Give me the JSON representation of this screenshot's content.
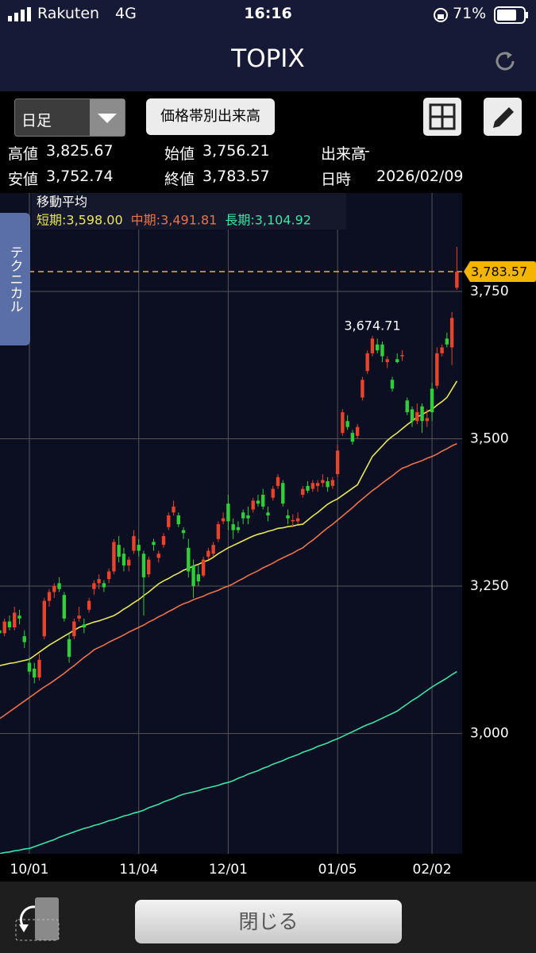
{
  "status": {
    "carrier": "Rakuten",
    "network": "4G",
    "time": "16:16",
    "battery": "71%"
  },
  "header": {
    "title": "TOPIX"
  },
  "toolbar": {
    "period": "日足",
    "volume_button": "価格帯別出来高"
  },
  "quote": [
    [
      "高値",
      "3,825.67"
    ],
    [
      "始値",
      "3,756.21"
    ],
    [
      "出来高",
      "--"
    ],
    [
      "安値",
      "3,752.74"
    ],
    [
      "終値",
      "3,783.57"
    ],
    [
      "日時",
      "2026/02/09"
    ]
  ],
  "side_tab": "テクニカル",
  "chart_data": {
    "type": "candlestick",
    "legend_title": "移動平均",
    "categories": [
      null,
      null,
      null,
      null,
      null,
      null,
      "10/01",
      null,
      null,
      null,
      null,
      null,
      null,
      null,
      null,
      null,
      null,
      null,
      null,
      null,
      null,
      null,
      null,
      null,
      null,
      null,
      null,
      null,
      "11/04",
      null,
      null,
      null,
      null,
      null,
      null,
      null,
      null,
      null,
      null,
      null,
      null,
      null,
      null,
      null,
      null,
      null,
      "12/01",
      null,
      null,
      null,
      null,
      null,
      null,
      null,
      null,
      null,
      null,
      null,
      null,
      null,
      null,
      null,
      null,
      null,
      null,
      null,
      null,
      null,
      "01/05",
      null,
      null,
      null,
      null,
      null,
      null,
      null,
      null,
      null,
      null,
      null,
      null,
      null,
      null,
      null,
      null,
      null,
      null,
      "02/02",
      null,
      null,
      null,
      null,
      null
    ],
    "ohlc": [
      [
        3175,
        3185,
        3160,
        3170
      ],
      [
        3170,
        3195,
        3165,
        3190
      ],
      [
        3190,
        3200,
        3175,
        3180
      ],
      [
        3180,
        3215,
        3175,
        3205
      ],
      [
        3200,
        3210,
        3185,
        3195
      ],
      [
        3165,
        3175,
        3145,
        3155
      ],
      [
        3120,
        3130,
        3100,
        3105
      ],
      [
        3110,
        3120,
        3085,
        3095
      ],
      [
        3095,
        3135,
        3090,
        3125
      ],
      [
        3165,
        3230,
        3160,
        3225
      ],
      [
        3225,
        3245,
        3215,
        3240
      ],
      [
        3240,
        3255,
        3230,
        3250
      ],
      [
        3255,
        3265,
        3240,
        3245
      ],
      [
        3235,
        3240,
        3190,
        3195
      ],
      [
        3160,
        3170,
        3120,
        3130
      ],
      [
        3165,
        3195,
        3160,
        3190
      ],
      [
        3195,
        3215,
        3190,
        3200
      ],
      [
        3185,
        3195,
        3170,
        3180
      ],
      [
        3210,
        3230,
        3205,
        3225
      ],
      [
        3245,
        3260,
        3235,
        3255
      ],
      [
        3255,
        3270,
        3245,
        3262
      ],
      [
        3255,
        3260,
        3240,
        3248
      ],
      [
        3262,
        3280,
        3255,
        3275
      ],
      [
        3275,
        3330,
        3270,
        3325
      ],
      [
        3320,
        3335,
        3290,
        3300
      ],
      [
        3305,
        3315,
        3275,
        3285
      ],
      [
        3285,
        3300,
        3275,
        3295
      ],
      [
        3310,
        3345,
        3305,
        3335
      ],
      [
        3320,
        3330,
        3300,
        3310
      ],
      [
        3305,
        3310,
        3200,
        3265
      ],
      [
        3270,
        3300,
        3265,
        3295
      ],
      [
        3325,
        3330,
        3310,
        3320
      ],
      [
        3298,
        3310,
        3290,
        3305
      ],
      [
        3320,
        3340,
        3315,
        3335
      ],
      [
        3350,
        3375,
        3345,
        3370
      ],
      [
        3375,
        3395,
        3370,
        3385
      ],
      [
        3370,
        3375,
        3350,
        3355
      ],
      [
        3345,
        3350,
        3330,
        3340
      ],
      [
        3315,
        3330,
        3265,
        3275
      ],
      [
        3285,
        3295,
        3230,
        3250
      ],
      [
        3270,
        3285,
        3250,
        3258
      ],
      [
        3268,
        3300,
        3265,
        3295
      ],
      [
        3300,
        3315,
        3295,
        3310
      ],
      [
        3305,
        3325,
        3300,
        3320
      ],
      [
        3330,
        3360,
        3325,
        3355
      ],
      [
        3360,
        3375,
        3355,
        3365
      ],
      [
        3390,
        3405,
        3345,
        3360
      ],
      [
        3355,
        3365,
        3330,
        3345
      ],
      [
        3350,
        3360,
        3340,
        3345
      ],
      [
        3375,
        3380,
        3355,
        3365
      ],
      [
        3370,
        3385,
        3355,
        3365
      ],
      [
        3380,
        3400,
        3375,
        3395
      ],
      [
        3395,
        3405,
        3385,
        3390
      ],
      [
        3405,
        3415,
        3380,
        3385
      ],
      [
        3375,
        3385,
        3360,
        3370
      ],
      [
        3400,
        3420,
        3395,
        3415
      ],
      [
        3420,
        3440,
        3415,
        3435
      ],
      [
        3425,
        3430,
        3385,
        3390
      ],
      [
        3370,
        3380,
        3355,
        3365
      ],
      [
        3360,
        3372,
        3350,
        3362
      ],
      [
        3360,
        3375,
        3355,
        3365
      ],
      [
        3405,
        3420,
        3400,
        3415
      ],
      [
        3420,
        3428,
        3408,
        3412
      ],
      [
        3415,
        3430,
        3410,
        3425
      ],
      [
        3420,
        3430,
        3410,
        3425
      ],
      [
        3425,
        3440,
        3418,
        3430
      ],
      [
        3428,
        3435,
        3410,
        3418
      ],
      [
        3420,
        3435,
        3415,
        3430
      ],
      [
        3440,
        3490,
        3435,
        3480
      ],
      [
        3510,
        3550,
        3505,
        3545
      ],
      [
        3530,
        3540,
        3515,
        3520
      ],
      [
        3510,
        3515,
        3490,
        3495
      ],
      [
        3505,
        3525,
        3500,
        3520
      ],
      [
        3570,
        3605,
        3565,
        3600
      ],
      [
        3615,
        3650,
        3610,
        3645
      ],
      [
        3645,
        3674.71,
        3640,
        3670
      ],
      [
        3660,
        3670,
        3645,
        3650
      ],
      [
        3660,
        3665,
        3630,
        3640
      ],
      [
        3630,
        3640,
        3620,
        3635
      ],
      [
        3600,
        3605,
        3580,
        3585
      ],
      [
        3635,
        3645,
        3628,
        3630
      ],
      [
        3640,
        3650,
        3632,
        3642
      ],
      [
        3565,
        3570,
        3540,
        3545
      ],
      [
        3550,
        3555,
        3520,
        3530
      ],
      [
        3530,
        3560,
        3525,
        3545
      ],
      [
        3555,
        3560,
        3510,
        3530
      ],
      [
        3530,
        3550,
        3520,
        3535
      ],
      [
        3585,
        3595,
        3530,
        3545
      ],
      [
        3590,
        3655,
        3585,
        3645
      ],
      [
        3645,
        3660,
        3640,
        3655
      ],
      [
        3670,
        3680,
        3655,
        3660
      ],
      [
        3655,
        3715,
        3625,
        3705
      ],
      [
        3756.21,
        3825.67,
        3752.74,
        3783.57
      ]
    ],
    "up_color": "#e8432b",
    "down_color": "#2fcf3a",
    "series": [
      {
        "name": "短期:",
        "legend_value": "3,598.00",
        "color": "#e6e65a",
        "values": [
          3115,
          3117,
          3119,
          3120,
          3122,
          3124,
          3126,
          3132,
          3138,
          3144,
          3150,
          3155,
          3160,
          3165,
          3170,
          3175,
          3180,
          3183,
          3186,
          3189,
          3191,
          3194,
          3197,
          3200,
          3205,
          3211,
          3216,
          3222,
          3227,
          3234,
          3240,
          3247,
          3254,
          3259,
          3263,
          3268,
          3272,
          3277,
          3280,
          3284,
          3287,
          3291,
          3294,
          3299,
          3305,
          3310,
          3315,
          3319,
          3323,
          3327,
          3331,
          3335,
          3338,
          3340,
          3343,
          3345,
          3348,
          3349,
          3351,
          3352,
          3354,
          3355,
          3362,
          3369,
          3375,
          3382,
          3389,
          3394,
          3398,
          3404,
          3410,
          3416,
          3422,
          3438,
          3454,
          3470,
          3479,
          3488,
          3497,
          3504,
          3510,
          3517,
          3524,
          3530,
          3537,
          3541,
          3546,
          3550,
          3557,
          3563,
          3570,
          3584,
          3598.0
        ]
      },
      {
        "name": "中期:",
        "legend_value": "3,491.81",
        "color": "#e8734c",
        "values": [
          3025,
          3031,
          3037,
          3043,
          3049,
          3055,
          3061,
          3067,
          3073,
          3079,
          3084,
          3090,
          3096,
          3102,
          3109,
          3115,
          3122,
          3129,
          3135,
          3142,
          3146,
          3150,
          3155,
          3159,
          3163,
          3167,
          3172,
          3176,
          3180,
          3184,
          3189,
          3193,
          3198,
          3202,
          3207,
          3211,
          3216,
          3220,
          3223,
          3227,
          3230,
          3233,
          3237,
          3240,
          3243,
          3247,
          3250,
          3254,
          3259,
          3263,
          3268,
          3272,
          3276,
          3281,
          3285,
          3289,
          3294,
          3298,
          3302,
          3306,
          3311,
          3315,
          3322,
          3328,
          3335,
          3342,
          3349,
          3355,
          3362,
          3369,
          3376,
          3383,
          3391,
          3398,
          3405,
          3412,
          3418,
          3425,
          3431,
          3437,
          3444,
          3450,
          3453,
          3457,
          3460,
          3463,
          3467,
          3470,
          3474,
          3479,
          3483,
          3488,
          3491.81
        ]
      },
      {
        "name": "長期:",
        "legend_value": "3,104.92",
        "color": "#3fe3a4",
        "values": [
          2796,
          2798,
          2799,
          2801,
          2802,
          2804,
          2805,
          2808,
          2811,
          2814,
          2817,
          2820,
          2824,
          2827,
          2830,
          2833,
          2836,
          2839,
          2841,
          2844,
          2846,
          2849,
          2852,
          2854,
          2857,
          2860,
          2862,
          2865,
          2867,
          2870,
          2874,
          2877,
          2880,
          2884,
          2887,
          2890,
          2894,
          2897,
          2899,
          2901,
          2903,
          2906,
          2908,
          2910,
          2912,
          2915,
          2917,
          2920,
          2924,
          2927,
          2931,
          2934,
          2937,
          2941,
          2944,
          2948,
          2951,
          2954,
          2958,
          2961,
          2964,
          2968,
          2971,
          2974,
          2978,
          2981,
          2984,
          2988,
          2991,
          2995,
          2999,
          3003,
          3007,
          3011,
          3015,
          3018,
          3022,
          3026,
          3030,
          3034,
          3038,
          3044,
          3050,
          3056,
          3061,
          3067,
          3073,
          3079,
          3084,
          3089,
          3094,
          3100,
          3104.92
        ]
      }
    ],
    "ylim": [
      2796,
      3917
    ],
    "yticks": [
      {
        "value": 3000,
        "label": "3,000"
      },
      {
        "value": 3250,
        "label": "3,250"
      },
      {
        "value": 3500,
        "label": "3,500"
      },
      {
        "value": 3750,
        "label": "3,750"
      }
    ],
    "grid": true,
    "annotations": [
      {
        "value": 3674.71,
        "label": "3,674.71"
      }
    ],
    "last_price": {
      "value": 3783.57,
      "label": "3,783.57",
      "color": "#f5b400"
    }
  },
  "footer": {
    "close_button": "閉じる"
  }
}
